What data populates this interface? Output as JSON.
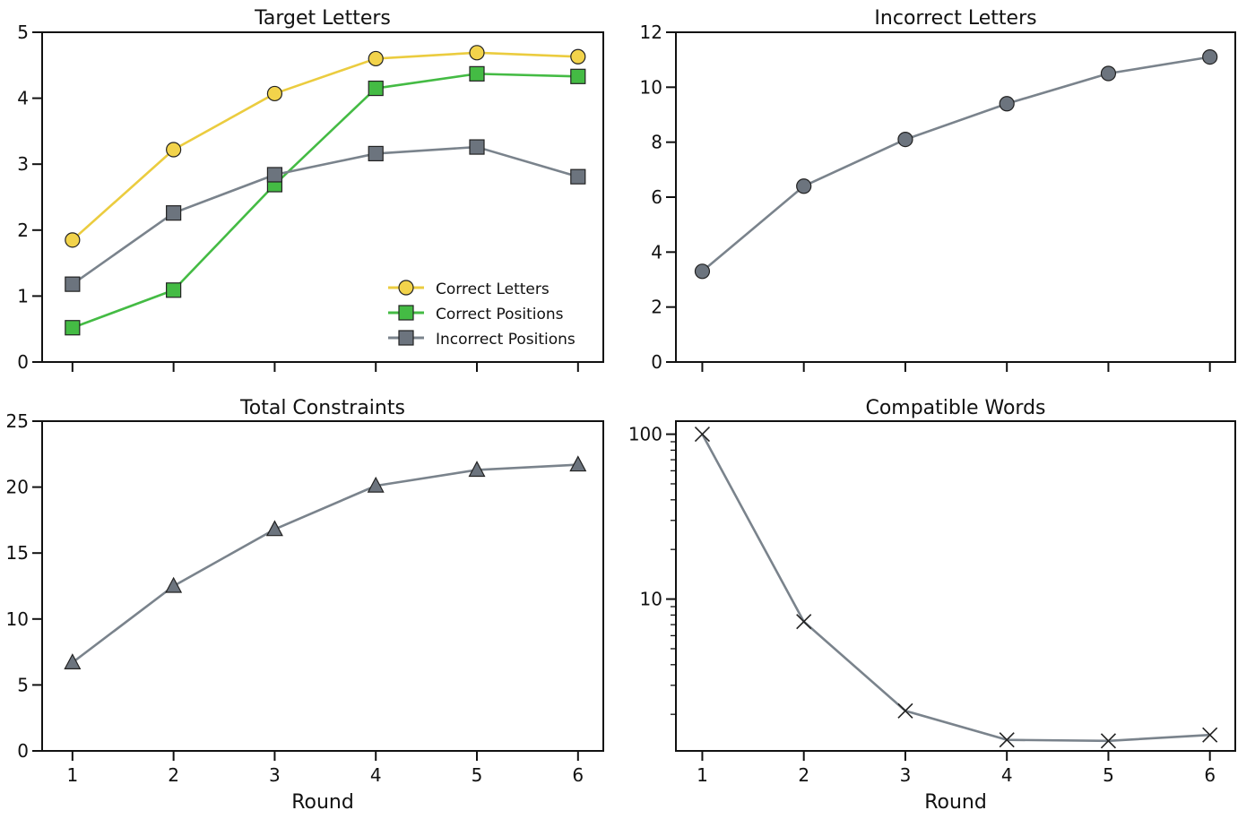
{
  "colors": {
    "correct_letters": "#f2d34b",
    "correct_letters_line": "#ebcc3f",
    "correct_positions": "#44bb44",
    "incorrect": "#6c747e",
    "incorrect_line": "#7a838c",
    "axis": "#111111"
  },
  "chart_data": [
    {
      "id": "target",
      "type": "line",
      "title": "Target Letters",
      "xlabel": "",
      "ylabel": "",
      "x": [
        1,
        2,
        3,
        4,
        5,
        6
      ],
      "xticks_labeled": false,
      "ylim": [
        0,
        5
      ],
      "yticks": [
        0,
        1,
        2,
        3,
        4,
        5
      ],
      "yscale": "linear",
      "legend": "lower-right",
      "series": [
        {
          "name": "Correct Letters",
          "values": [
            1.85,
            3.22,
            4.07,
            4.6,
            4.69,
            4.63
          ],
          "marker": "circle",
          "color_key": "correct_letters",
          "line_key": "correct_letters_line"
        },
        {
          "name": "Correct Positions",
          "values": [
            0.52,
            1.09,
            2.69,
            4.15,
            4.37,
            4.33
          ],
          "marker": "square",
          "color_key": "correct_positions",
          "line_key": "correct_positions"
        },
        {
          "name": "Incorrect Positions",
          "values": [
            1.18,
            2.26,
            2.84,
            3.16,
            3.26,
            2.81
          ],
          "marker": "square",
          "color_key": "incorrect",
          "line_key": "incorrect_line"
        }
      ]
    },
    {
      "id": "incorrect",
      "type": "line",
      "title": "Incorrect Letters",
      "xlabel": "",
      "ylabel": "",
      "x": [
        1,
        2,
        3,
        4,
        5,
        6
      ],
      "xticks_labeled": false,
      "ylim": [
        0,
        12
      ],
      "yticks": [
        0,
        2,
        4,
        6,
        8,
        10,
        12
      ],
      "yscale": "linear",
      "series": [
        {
          "name": "Incorrect Letters",
          "values": [
            3.3,
            6.4,
            8.1,
            9.4,
            10.5,
            11.1
          ],
          "marker": "circle",
          "color_key": "incorrect",
          "line_key": "incorrect_line"
        }
      ]
    },
    {
      "id": "constraints",
      "type": "line",
      "title": "Total Constraints",
      "xlabel": "Round",
      "ylabel": "",
      "x": [
        1,
        2,
        3,
        4,
        5,
        6
      ],
      "xticks_labeled": true,
      "ylim": [
        0,
        25
      ],
      "yticks": [
        0,
        5,
        10,
        15,
        20,
        25
      ],
      "yscale": "linear",
      "series": [
        {
          "name": "Total Constraints",
          "values": [
            6.7,
            12.5,
            16.8,
            20.1,
            21.3,
            21.7
          ],
          "marker": "triangle",
          "color_key": "incorrect",
          "line_key": "incorrect_line"
        }
      ]
    },
    {
      "id": "compatible",
      "type": "line",
      "title": "Compatible Words",
      "xlabel": "Round",
      "ylabel": "",
      "x": [
        1,
        2,
        3,
        4,
        5,
        6
      ],
      "xticks_labeled": true,
      "ylim": [
        1.2,
        120
      ],
      "yticks": [
        10,
        100
      ],
      "yscale": "log",
      "series": [
        {
          "name": "Compatible Words",
          "values": [
            100,
            7.3,
            2.1,
            1.4,
            1.38,
            1.5
          ],
          "marker": "x",
          "color_key": "axis",
          "line_key": "incorrect_line"
        }
      ]
    }
  ]
}
